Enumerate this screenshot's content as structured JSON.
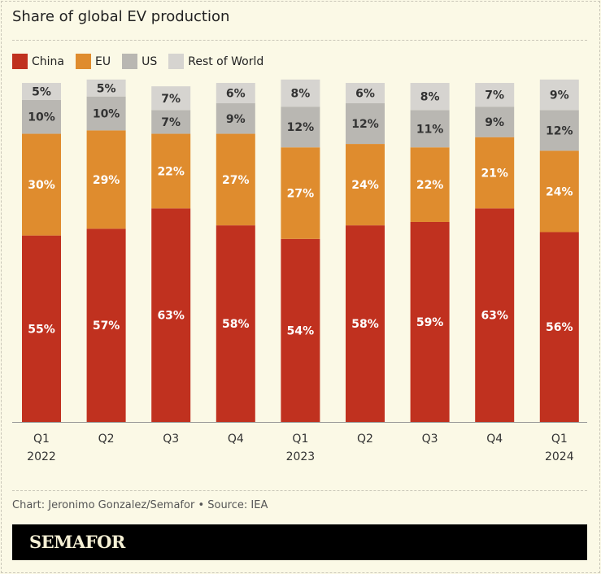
{
  "title": "Share of global EV production",
  "credit": "Chart: Jeronimo Gonzalez/Semafor • Source: IEA",
  "brand": "SEMAFOR",
  "chart_data": {
    "type": "bar",
    "stacked": true,
    "title": "Share of global EV production",
    "legend_placement": "top-left",
    "categories": [
      [
        "Q1",
        "2022"
      ],
      [
        "Q2",
        ""
      ],
      [
        "Q3",
        ""
      ],
      [
        "Q4",
        ""
      ],
      [
        "Q1",
        "2023"
      ],
      [
        "Q2",
        ""
      ],
      [
        "Q3",
        ""
      ],
      [
        "Q4",
        ""
      ],
      [
        "Q1",
        "2024"
      ]
    ],
    "series": [
      {
        "name": "China",
        "color": "#c0311f",
        "values": [
          55,
          57,
          63,
          58,
          54,
          58,
          59,
          63,
          56
        ]
      },
      {
        "name": "EU",
        "color": "#df8c2e",
        "values": [
          30,
          29,
          22,
          27,
          27,
          24,
          22,
          21,
          24
        ]
      },
      {
        "name": "US",
        "color": "#b9b7b2",
        "values": [
          10,
          10,
          7,
          9,
          12,
          12,
          11,
          9,
          12
        ]
      },
      {
        "name": "Rest of World",
        "color": "#d6d4d0",
        "values": [
          5,
          5,
          7,
          6,
          8,
          6,
          8,
          7,
          9
        ]
      }
    ],
    "unit": "%",
    "ylim": [
      0,
      100
    ],
    "grid": false
  }
}
